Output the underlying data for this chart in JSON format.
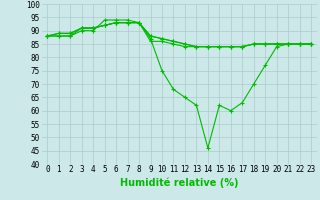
{
  "xlabel": "Humidité relative (%)",
  "background_color": "#cce8e8",
  "grid_color": "#aacccc",
  "line_color": "#00bb00",
  "xlim": [
    -0.5,
    23.5
  ],
  "ylim": [
    40,
    100
  ],
  "xticks": [
    0,
    1,
    2,
    3,
    4,
    5,
    6,
    7,
    8,
    9,
    10,
    11,
    12,
    13,
    14,
    15,
    16,
    17,
    18,
    19,
    20,
    21,
    22,
    23
  ],
  "yticks": [
    40,
    45,
    50,
    55,
    60,
    65,
    70,
    75,
    80,
    85,
    90,
    95,
    100
  ],
  "series": [
    [
      88,
      88,
      88,
      90,
      90,
      94,
      94,
      94,
      93,
      87,
      75,
      68,
      65,
      62,
      46,
      62,
      60,
      63,
      70,
      77,
      84,
      85,
      85,
      85
    ],
    [
      88,
      88,
      88,
      91,
      91,
      92,
      93,
      93,
      93,
      88,
      87,
      86,
      85,
      84,
      84,
      84,
      84,
      84,
      85,
      85,
      85,
      85,
      85,
      85
    ],
    [
      88,
      89,
      89,
      91,
      91,
      92,
      93,
      93,
      93,
      88,
      87,
      86,
      85,
      84,
      84,
      84,
      84,
      84,
      85,
      85,
      85,
      85,
      85,
      85
    ],
    [
      88,
      89,
      89,
      91,
      91,
      92,
      93,
      93,
      93,
      86,
      86,
      85,
      84,
      84,
      84,
      84,
      84,
      84,
      85,
      85,
      85,
      85,
      85,
      85
    ]
  ],
  "marker": "+",
  "markersize": 3,
  "linewidth": 0.8,
  "xlabel_fontsize": 7,
  "tick_fontsize": 5.5
}
